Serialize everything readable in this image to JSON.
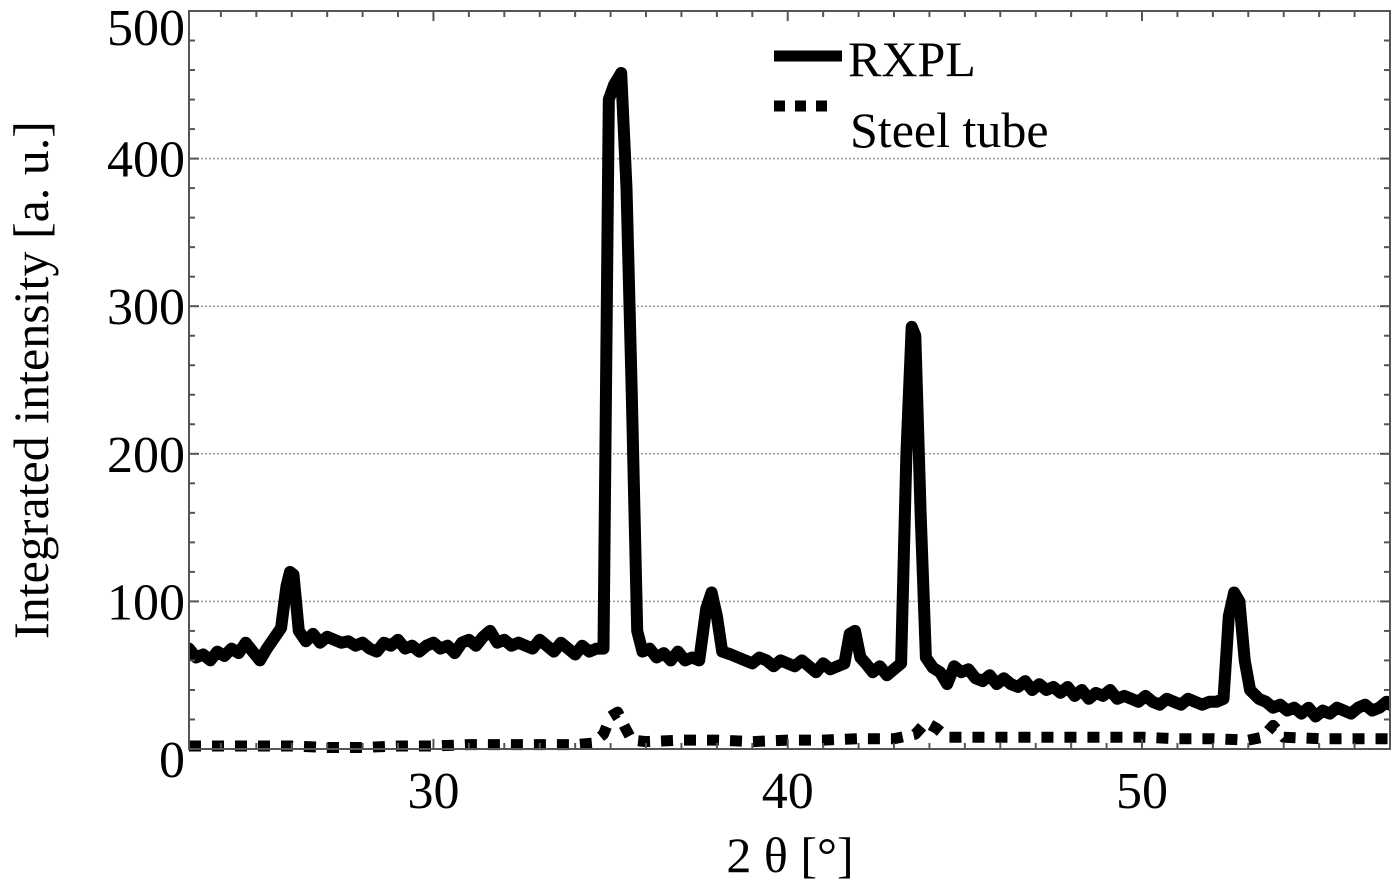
{
  "chart_data": {
    "type": "line",
    "title": "",
    "xlabel": "2 θ [°]",
    "ylabel": "Integrated intensity [a. u.]",
    "xlim": [
      23.1,
      57.0
    ],
    "ylim": [
      0,
      500
    ],
    "x_ticks": [
      30,
      40,
      50
    ],
    "x_tick_labels": [
      "30",
      "40",
      "50"
    ],
    "x_minor_step": 1,
    "y_ticks": [
      0,
      100,
      200,
      300,
      400,
      500
    ],
    "y_tick_labels": [
      "0",
      "100",
      "200",
      "300",
      "400",
      "500"
    ],
    "y_minor_step": 20,
    "grid": {
      "horizontal": true,
      "vertical": false,
      "style": "dotted",
      "at": [
        100,
        200,
        300,
        400
      ]
    },
    "legend": {
      "position": "upper-center",
      "entries": [
        {
          "label": "RXPL",
          "style": "solid"
        },
        {
          "label": "Steel tube",
          "style": "dotted"
        }
      ]
    },
    "series": [
      {
        "name": "RXPL",
        "style": "solid",
        "color": "#000000",
        "points": [
          [
            23.1,
            68
          ],
          [
            23.3,
            62
          ],
          [
            23.5,
            64
          ],
          [
            23.7,
            60
          ],
          [
            23.9,
            66
          ],
          [
            24.1,
            63
          ],
          [
            24.3,
            68
          ],
          [
            24.5,
            65
          ],
          [
            24.7,
            72
          ],
          [
            24.9,
            66
          ],
          [
            25.1,
            60
          ],
          [
            25.3,
            68
          ],
          [
            25.5,
            75
          ],
          [
            25.7,
            82
          ],
          [
            25.85,
            110
          ],
          [
            25.95,
            120
          ],
          [
            26.05,
            118
          ],
          [
            26.2,
            80
          ],
          [
            26.4,
            73
          ],
          [
            26.6,
            78
          ],
          [
            26.8,
            72
          ],
          [
            27.0,
            76
          ],
          [
            27.2,
            74
          ],
          [
            27.4,
            72
          ],
          [
            27.6,
            73
          ],
          [
            27.8,
            70
          ],
          [
            28.0,
            72
          ],
          [
            28.2,
            68
          ],
          [
            28.4,
            66
          ],
          [
            28.6,
            72
          ],
          [
            28.8,
            70
          ],
          [
            29.0,
            74
          ],
          [
            29.2,
            68
          ],
          [
            29.4,
            70
          ],
          [
            29.6,
            66
          ],
          [
            29.8,
            70
          ],
          [
            30.0,
            72
          ],
          [
            30.2,
            68
          ],
          [
            30.4,
            70
          ],
          [
            30.6,
            65
          ],
          [
            30.8,
            72
          ],
          [
            31.0,
            74
          ],
          [
            31.2,
            70
          ],
          [
            31.4,
            76
          ],
          [
            31.6,
            80
          ],
          [
            31.8,
            72
          ],
          [
            32.0,
            74
          ],
          [
            32.2,
            70
          ],
          [
            32.4,
            72
          ],
          [
            32.6,
            70
          ],
          [
            32.8,
            68
          ],
          [
            33.0,
            74
          ],
          [
            33.2,
            70
          ],
          [
            33.4,
            66
          ],
          [
            33.6,
            72
          ],
          [
            33.8,
            68
          ],
          [
            34.0,
            64
          ],
          [
            34.2,
            70
          ],
          [
            34.4,
            66
          ],
          [
            34.6,
            68
          ],
          [
            34.8,
            68
          ],
          [
            34.95,
            440
          ],
          [
            35.1,
            450
          ],
          [
            35.3,
            458
          ],
          [
            35.45,
            380
          ],
          [
            35.6,
            240
          ],
          [
            35.75,
            80
          ],
          [
            35.9,
            66
          ],
          [
            36.1,
            68
          ],
          [
            36.3,
            62
          ],
          [
            36.5,
            65
          ],
          [
            36.7,
            60
          ],
          [
            36.9,
            66
          ],
          [
            37.1,
            60
          ],
          [
            37.3,
            62
          ],
          [
            37.5,
            60
          ],
          [
            37.7,
            95
          ],
          [
            37.85,
            106
          ],
          [
            38.0,
            90
          ],
          [
            38.15,
            66
          ],
          [
            38.4,
            64
          ],
          [
            38.6,
            62
          ],
          [
            38.8,
            60
          ],
          [
            39.0,
            58
          ],
          [
            39.2,
            62
          ],
          [
            39.4,
            60
          ],
          [
            39.6,
            56
          ],
          [
            39.8,
            60
          ],
          [
            40.0,
            58
          ],
          [
            40.2,
            56
          ],
          [
            40.4,
            60
          ],
          [
            40.6,
            56
          ],
          [
            40.8,
            52
          ],
          [
            41.0,
            58
          ],
          [
            41.2,
            54
          ],
          [
            41.4,
            56
          ],
          [
            41.6,
            58
          ],
          [
            41.75,
            78
          ],
          [
            41.9,
            80
          ],
          [
            42.05,
            62
          ],
          [
            42.2,
            58
          ],
          [
            42.4,
            52
          ],
          [
            42.6,
            56
          ],
          [
            42.8,
            50
          ],
          [
            43.0,
            54
          ],
          [
            43.2,
            58
          ],
          [
            43.35,
            200
          ],
          [
            43.5,
            286
          ],
          [
            43.6,
            280
          ],
          [
            43.75,
            160
          ],
          [
            43.9,
            62
          ],
          [
            44.1,
            55
          ],
          [
            44.3,
            52
          ],
          [
            44.5,
            44
          ],
          [
            44.7,
            56
          ],
          [
            44.9,
            52
          ],
          [
            45.1,
            54
          ],
          [
            45.3,
            48
          ],
          [
            45.5,
            46
          ],
          [
            45.7,
            50
          ],
          [
            45.9,
            44
          ],
          [
            46.1,
            48
          ],
          [
            46.3,
            44
          ],
          [
            46.5,
            42
          ],
          [
            46.7,
            46
          ],
          [
            46.9,
            40
          ],
          [
            47.1,
            44
          ],
          [
            47.3,
            40
          ],
          [
            47.5,
            42
          ],
          [
            47.7,
            38
          ],
          [
            47.9,
            42
          ],
          [
            48.1,
            36
          ],
          [
            48.3,
            40
          ],
          [
            48.5,
            34
          ],
          [
            48.7,
            38
          ],
          [
            48.9,
            36
          ],
          [
            49.1,
            40
          ],
          [
            49.3,
            34
          ],
          [
            49.5,
            36
          ],
          [
            49.7,
            34
          ],
          [
            49.9,
            32
          ],
          [
            50.1,
            36
          ],
          [
            50.3,
            32
          ],
          [
            50.5,
            30
          ],
          [
            50.7,
            34
          ],
          [
            50.9,
            32
          ],
          [
            51.1,
            30
          ],
          [
            51.3,
            34
          ],
          [
            51.5,
            32
          ],
          [
            51.7,
            30
          ],
          [
            51.9,
            32
          ],
          [
            52.1,
            32
          ],
          [
            52.3,
            34
          ],
          [
            52.45,
            90
          ],
          [
            52.6,
            106
          ],
          [
            52.75,
            100
          ],
          [
            52.9,
            60
          ],
          [
            53.05,
            40
          ],
          [
            53.3,
            34
          ],
          [
            53.5,
            32
          ],
          [
            53.7,
            28
          ],
          [
            53.9,
            30
          ],
          [
            54.1,
            26
          ],
          [
            54.3,
            28
          ],
          [
            54.5,
            24
          ],
          [
            54.7,
            28
          ],
          [
            54.9,
            22
          ],
          [
            55.1,
            26
          ],
          [
            55.3,
            24
          ],
          [
            55.5,
            28
          ],
          [
            55.7,
            26
          ],
          [
            55.9,
            24
          ],
          [
            56.1,
            28
          ],
          [
            56.3,
            30
          ],
          [
            56.5,
            26
          ],
          [
            56.7,
            28
          ],
          [
            56.9,
            32
          ],
          [
            57.0,
            30
          ]
        ]
      },
      {
        "name": "Steel tube",
        "style": "dotted",
        "color": "#000000",
        "points": [
          [
            23.1,
            2
          ],
          [
            24.0,
            2
          ],
          [
            25.0,
            2
          ],
          [
            26.0,
            2
          ],
          [
            27.0,
            1
          ],
          [
            28.0,
            1
          ],
          [
            29.0,
            2
          ],
          [
            30.0,
            2
          ],
          [
            31.0,
            3
          ],
          [
            32.0,
            3
          ],
          [
            33.0,
            3
          ],
          [
            34.0,
            3
          ],
          [
            34.5,
            4
          ],
          [
            34.8,
            10
          ],
          [
            35.0,
            22
          ],
          [
            35.2,
            25
          ],
          [
            35.4,
            15
          ],
          [
            35.6,
            6
          ],
          [
            36.0,
            5
          ],
          [
            37.0,
            6
          ],
          [
            38.0,
            6
          ],
          [
            39.0,
            5
          ],
          [
            40.0,
            6
          ],
          [
            41.0,
            6
          ],
          [
            42.0,
            7
          ],
          [
            43.0,
            7
          ],
          [
            43.6,
            10
          ],
          [
            43.9,
            18
          ],
          [
            44.2,
            14
          ],
          [
            44.5,
            8
          ],
          [
            45.0,
            8
          ],
          [
            46.0,
            8
          ],
          [
            47.0,
            8
          ],
          [
            48.0,
            8
          ],
          [
            49.0,
            8
          ],
          [
            50.0,
            8
          ],
          [
            51.0,
            7
          ],
          [
            52.0,
            7
          ],
          [
            53.0,
            6
          ],
          [
            53.4,
            8
          ],
          [
            53.7,
            16
          ],
          [
            54.0,
            8
          ],
          [
            55.0,
            7
          ],
          [
            56.0,
            7
          ],
          [
            57.0,
            7
          ]
        ]
      }
    ]
  }
}
